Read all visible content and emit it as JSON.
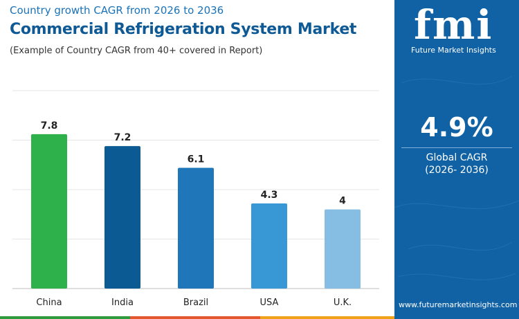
{
  "header": {
    "subtitle": "Country growth CAGR from 2026 to 2036",
    "title": "Commercial Refrigeration System Market",
    "note": "(Example of Country CAGR from 40+ covered in Report)"
  },
  "sidebar": {
    "logo": "fmi",
    "logo_sub": "Future Market Insights",
    "cagr_value": "4.9%",
    "cagr_label": "Global CAGR",
    "cagr_period": "(2026- 2036)",
    "website": "www.futuremarketinsights.com"
  },
  "chart_data": {
    "type": "bar",
    "categories": [
      "China",
      "India",
      "Brazil",
      "USA",
      "U.K."
    ],
    "values": [
      7.8,
      7.2,
      6.1,
      4.3,
      4
    ],
    "data_labels": [
      "7.8",
      "7.2",
      "6.1",
      "4.3",
      "4"
    ],
    "colors": [
      "#2eb14a",
      "#0c5a94",
      "#1f77ba",
      "#3898d6",
      "#86bde3"
    ],
    "title": "",
    "xlabel": "",
    "ylabel": "",
    "ylim": [
      0,
      10
    ],
    "grid": true,
    "legend": "none"
  }
}
